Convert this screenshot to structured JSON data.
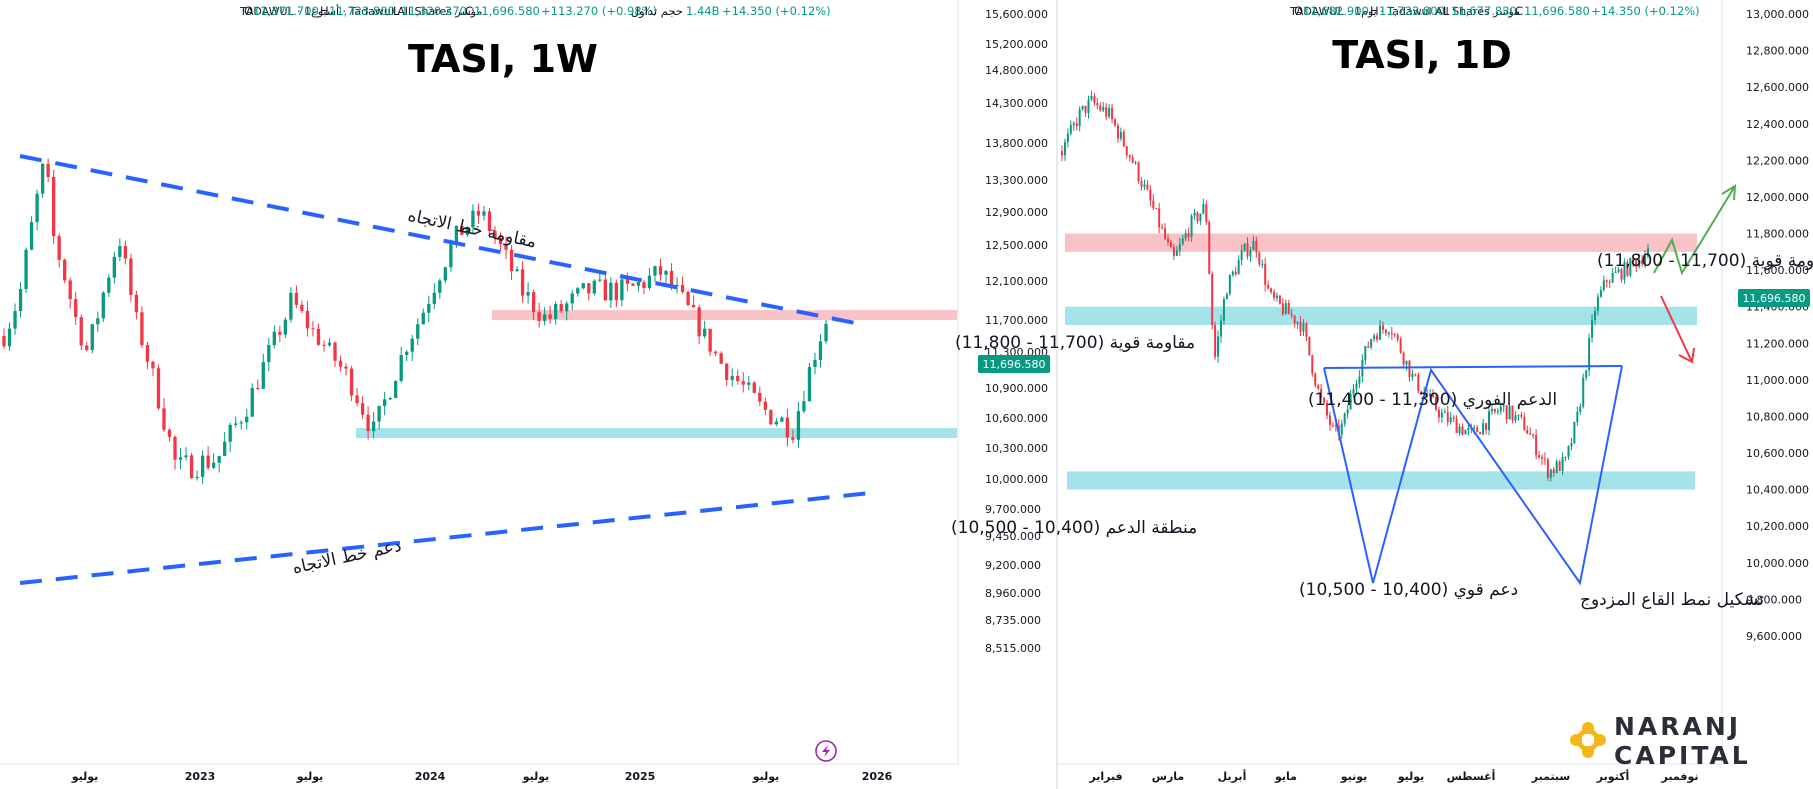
{
  "colors": {
    "up": "#089981",
    "down": "#f23645",
    "trendline": "#2962ff",
    "resistance_zone": "#f8c2c6",
    "support_zone": "#a5e3ea",
    "price_tag": "#089981",
    "arrow_up": "#4caf50",
    "arrow_down": "#f23645"
  },
  "watermark_icon": "bolt-icon",
  "logo": {
    "line1": "NARANJ",
    "line2": "CAPITAL",
    "icon": "sun-knot-icon"
  },
  "chart_data": [
    {
      "type": "candlestick",
      "title": "TASI, 1W",
      "legend": {
        "symbol": "مؤشر Tadawul All Shares · أسبوع1 · TADAWUL",
        "open_label": "O",
        "open": "11,371.700",
        "high_label": "H",
        "high": "11,723.800",
        "low_label": "L",
        "low": "11,320.270",
        "close_label": "C",
        "close": "11,696.580",
        "change": "+113.270 (+0.98%)",
        "volume_label": "حجم تداول",
        "volume": "1.44B",
        "change2": "+14.350 (+0.12%)"
      },
      "last_price": "11,696.580",
      "y_axis": {
        "scale": "log",
        "ylim": [
          8400,
          16000
        ],
        "ticks": [
          "15,600.000",
          "15,200.000",
          "14,800.000",
          "14,300.000",
          "13,800.000",
          "13,300.000",
          "12,900.000",
          "12,500.000",
          "12,100.000",
          "11,700.000",
          "11,300.000",
          "10,900.000",
          "10,600.000",
          "10,300.000",
          "10,000.000",
          "9,700.000",
          "9,450.000",
          "9,200.000",
          "8,960.000",
          "8,735.000",
          "8,515.000"
        ]
      },
      "x_axis": {
        "ticks": [
          "يوليو",
          "2023",
          "يوليو",
          "2024",
          "يوليو",
          "2025",
          "يوليو",
          "2026"
        ]
      },
      "x": [
        "2022-07",
        "2023-01",
        "2023-07",
        "2024-01",
        "2024-07",
        "2025-01",
        "2025-07",
        "2025-10"
      ],
      "close": [
        11700,
        10400,
        11200,
        12300,
        12000,
        12100,
        11000,
        11696
      ],
      "zones": [
        {
          "label": "مقاومة قوية (11,700 - 11,800)",
          "from": 11700,
          "to": 11800,
          "kind": "resistance"
        },
        {
          "label": "منطقة الدعم (10,400 - 10,500)",
          "from": 10400,
          "to": 10500,
          "kind": "support"
        }
      ],
      "annotations": [
        "مقاومة خط الاتجاه",
        "دعم خط الاتجاه"
      ]
    },
    {
      "type": "candlestick",
      "title": "TASI, 1D",
      "legend": {
        "symbol": "مؤشر Tadawul All Shares · يوم1 · TADAWUL",
        "open_label": "O",
        "open": "11,682.900",
        "high_label": "H",
        "high": "11,723.800",
        "low_label": "L",
        "low": "11,677.830",
        "close_label": "C",
        "close": "11,696.580",
        "change": "+14.350 (+0.12%)"
      },
      "last_price": "11,696.580",
      "y_axis": {
        "scale": "linear",
        "ylim": [
          9500,
          13100
        ],
        "ticks": [
          "13,000.000",
          "12,800.000",
          "12,600.000",
          "12,400.000",
          "12,200.000",
          "12,000.000",
          "11,800.000",
          "11,600.000",
          "11,400.000",
          "11,200.000",
          "11,000.000",
          "10,800.000",
          "10,600.000",
          "10,400.000",
          "10,200.000",
          "10,000.000",
          "9,800.000",
          "9,600.000"
        ]
      },
      "x_axis": {
        "ticks": [
          "فبراير",
          "مارس",
          "أبريل",
          "مايو",
          "يونيو",
          "يوليو",
          "أغسطس",
          "سبتمبر",
          "أكتوبر",
          "نوفمبر"
        ]
      },
      "x": [
        "2025-01",
        "2025-02",
        "2025-03",
        "2025-04",
        "2025-05",
        "2025-06",
        "2025-07",
        "2025-08",
        "2025-09",
        "2025-10"
      ],
      "close": [
        12350,
        12000,
        12300,
        11550,
        10700,
        11350,
        10800,
        10450,
        11600,
        11696
      ],
      "zones": [
        {
          "label": "مقاومة قوية (11,700 - 11,800)",
          "from": 11700,
          "to": 11800,
          "kind": "resistance"
        },
        {
          "label": "الدعم الفوري (11,300 - 11,400)",
          "from": 11300,
          "to": 11400,
          "kind": "support"
        },
        {
          "label": "دعم قوي (10,400 - 10,500)",
          "from": 10400,
          "to": 10500,
          "kind": "support"
        }
      ],
      "annotations": [
        "تشكيل نمط القاع المزدوج"
      ]
    }
  ]
}
